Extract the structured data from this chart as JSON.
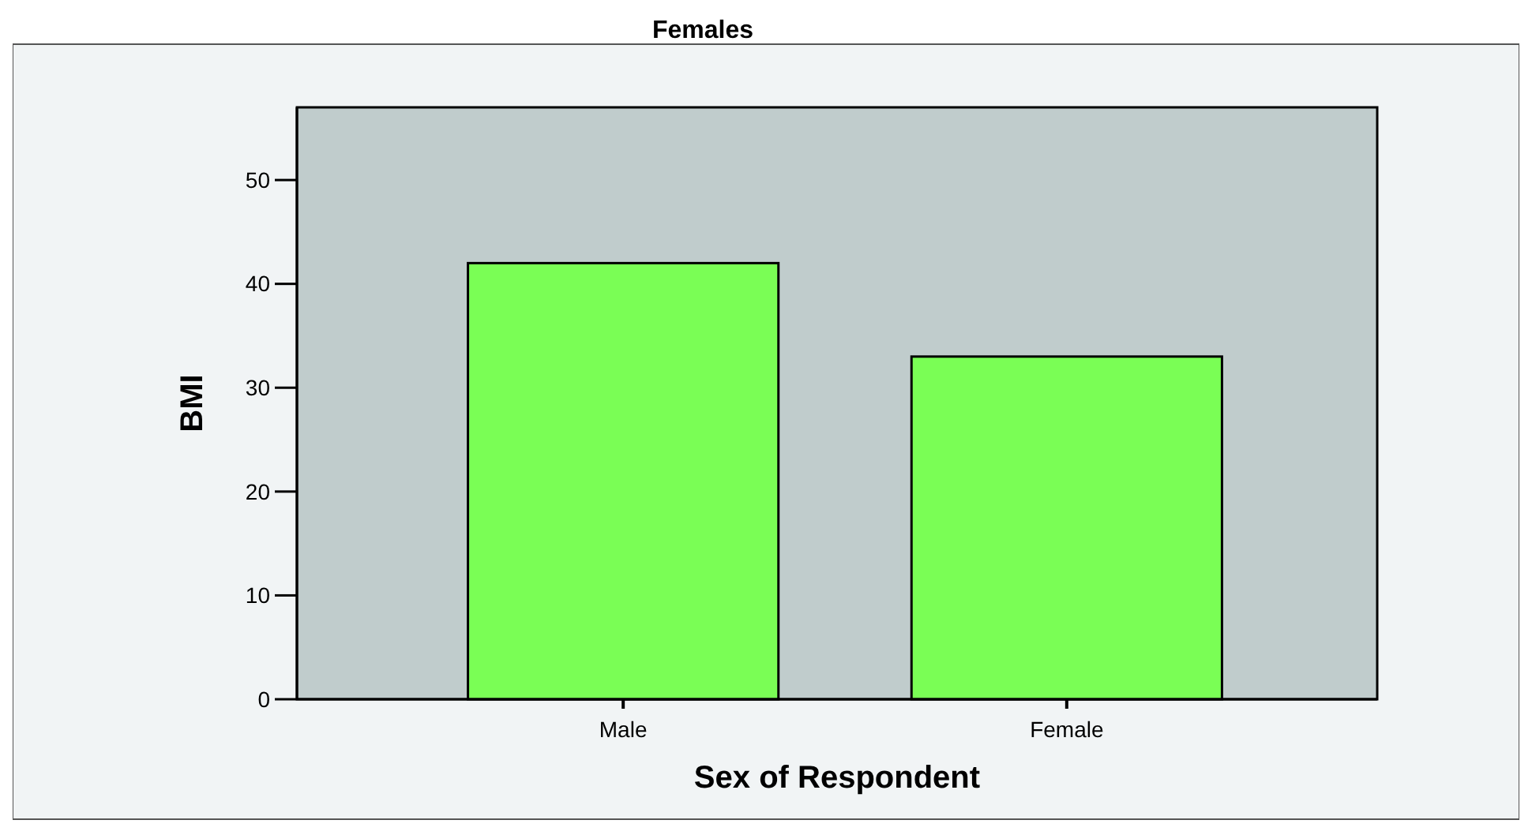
{
  "chart_data": {
    "type": "bar",
    "title": "Females",
    "xlabel": "Sex of Respondent",
    "ylabel": "BMI",
    "categories": [
      "Male",
      "Female"
    ],
    "values": [
      42,
      33
    ],
    "color": "#7afe55",
    "ylim": [
      0,
      57
    ],
    "yticks": [
      0,
      10,
      20,
      30,
      40,
      50
    ],
    "grid": false
  }
}
